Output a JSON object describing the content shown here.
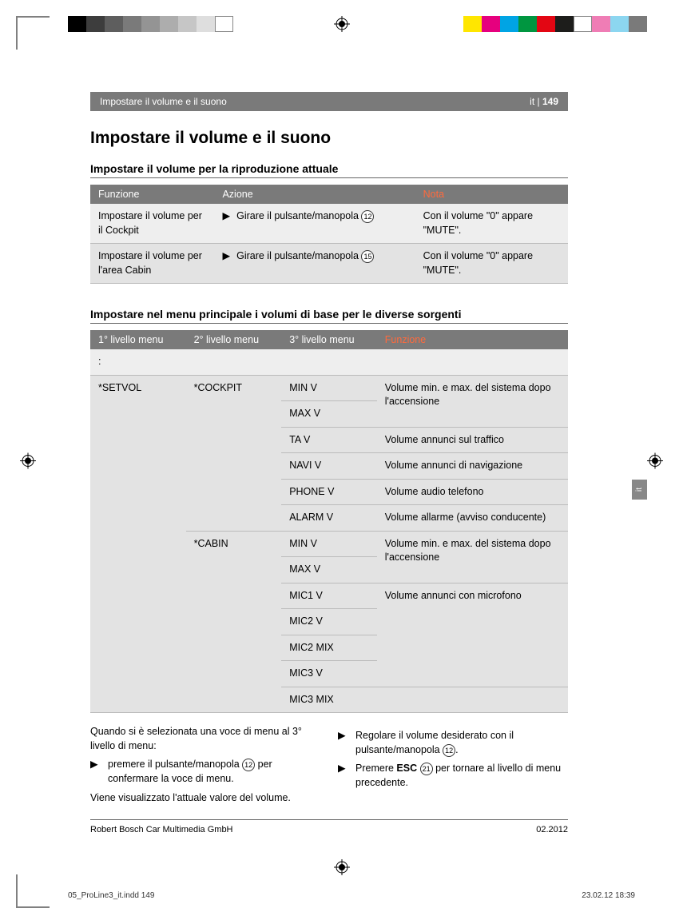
{
  "colorbar": {
    "left_colors": [
      "#000000",
      "#3d3d3d",
      "#5e5e5e",
      "#7a7a7a",
      "#949494",
      "#adadad",
      "#c6c6c6",
      "#dedede",
      "#ffffff"
    ],
    "right_colors": [
      "#ffe600",
      "#e6007e",
      "#00a4e4",
      "#009640",
      "#e30613",
      "#1d1d1b",
      "#ffffff",
      "#ef7db5",
      "#8cd6f0",
      "#7a7a7a"
    ],
    "left_box_width": 23,
    "right_box_width": 23,
    "height": 20
  },
  "header": {
    "breadcrumb": "Impostare il volume e il suono",
    "page_ref": "it | 149",
    "page_num_bold": "149"
  },
  "title": "Impostare il volume e il suono",
  "sec1": {
    "heading": "Impostare il volume per la riproduzione attuale",
    "cols": [
      "Funzione",
      "Azione",
      "Nota"
    ],
    "rows": [
      {
        "f": "Impostare il volume per il Cockpit",
        "a": "Girare il pulsante/manopola",
        "a_ref": "12",
        "n": "Con il volume \"0\" appare \"MUTE\"."
      },
      {
        "f": "Impostare il volume per l'area Cabin",
        "a": "Girare il pulsante/manopola",
        "a_ref": "15",
        "n": "Con il volume \"0\" appare \"MUTE\"."
      }
    ]
  },
  "sec2": {
    "heading": "Impostare nel menu principale i volumi di base per le diverse sorgenti",
    "cols": [
      "1° livello menu",
      "2° livello menu",
      "3° livello menu",
      "Funzione"
    ]
  },
  "menu": {
    "icon_row": ":",
    "l1": "*SETVOL",
    "cockpit": {
      "label": "*COCKPIT",
      "items": [
        {
          "k": "MIN V",
          "v": "Volume min. e max. del sistema dopo l'accensione",
          "span": 2
        },
        {
          "k": "MAX V",
          "v": ""
        },
        {
          "k": "TA V",
          "v": "Volume annunci sul traffico",
          "span": 1
        },
        {
          "k": "NAVI V",
          "v": "Volume annunci di navigazione",
          "span": 1
        },
        {
          "k": "PHONE V",
          "v": "Volume audio telefono",
          "span": 1
        },
        {
          "k": "ALARM V",
          "v": "Volume allarme (avviso conducente)",
          "span": 1
        }
      ]
    },
    "cabin": {
      "label": "*CABIN",
      "items": [
        {
          "k": "MIN V",
          "v": "Volume min. e max. del sistema dopo l'accensione",
          "span": 2
        },
        {
          "k": "MAX V",
          "v": ""
        },
        {
          "k": "MIC1 V",
          "v": "Volume annunci con microfono",
          "span": 4
        },
        {
          "k": "MIC2 V",
          "v": ""
        },
        {
          "k": "MIC2 MIX",
          "v": ""
        },
        {
          "k": "MIC3 V",
          "v": ""
        },
        {
          "k": "MIC3 MIX",
          "v": "",
          "standalone": true
        }
      ]
    }
  },
  "body": {
    "p1": "Quando si è selezionata una voce di menu al 3° livello di menu:",
    "s1a": "premere il pulsante/manopola ",
    "s1ref": "12",
    "s1b": " per confermare la voce di menu.",
    "p2": "Viene visualizzato l'attuale valore del volume.",
    "s2a": "Regolare il volume desiderato con il pulsante/manopola ",
    "s2ref": "12",
    "s2b": ".",
    "s3a": "Premere ",
    "s3bold": "ESC",
    "s3ref": "21",
    "s3b": " per tornare al livello di menu precedente."
  },
  "footer": {
    "l": "Robert Bosch Car Multimedia GmbH",
    "r": "02.2012"
  },
  "slug": {
    "l": "05_ProLine3_it.indd   149",
    "r": "23.02.12   18:39"
  },
  "side_tab": "it"
}
